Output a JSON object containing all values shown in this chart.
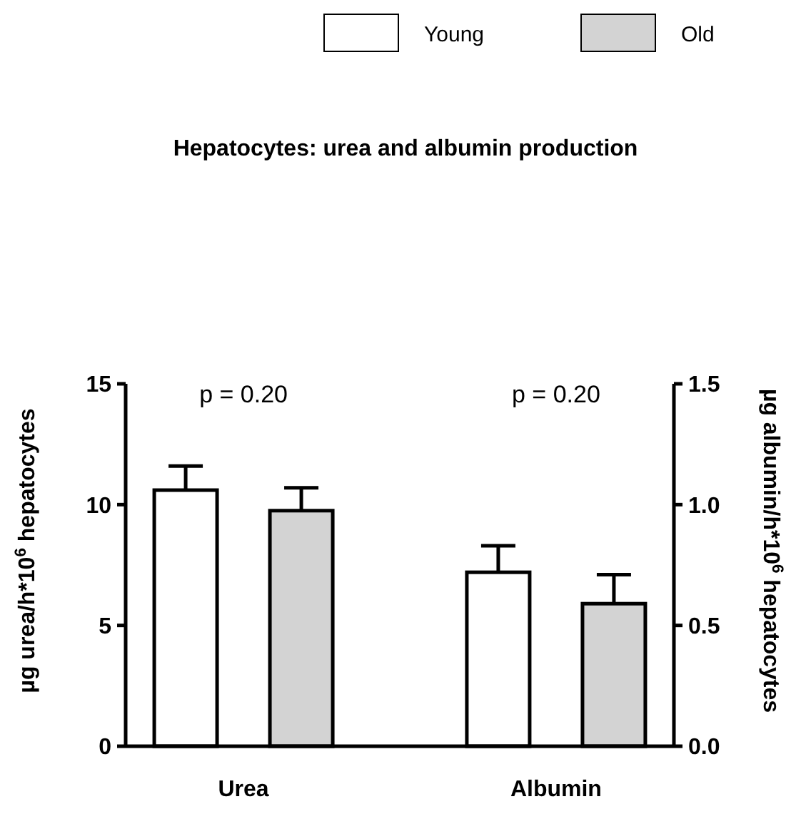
{
  "chart_data": {
    "type": "bar",
    "title": "Hepatocytes: urea and albumin production",
    "categories": [
      "Urea",
      "Albumin"
    ],
    "ylabel": "µg urea/h*10$^{6}$ hepatocytes",
    "y2label": "µg albumin/h*10$^{6}$ hepatocytes",
    "ylim": [
      0,
      15
    ],
    "yticks": [
      0,
      5,
      10,
      15
    ],
    "y2lim": [
      0,
      1.5
    ],
    "y2ticks": [
      {
        "value": 0,
        "label": "0.0"
      },
      {
        "value": 0.5,
        "label": "0.5"
      },
      {
        "value": 1,
        "label": "1.0"
      },
      {
        "value": 1.5,
        "label": "1.5"
      }
    ],
    "series": [
      {
        "name": "Young",
        "color": "#ffffff",
        "values": [
          10.6,
          null
        ],
        "errors": [
          1.0,
          null
        ]
      },
      {
        "name": "Old",
        "color": "#d3d3d3",
        "values": [
          9.75,
          null
        ],
        "errors": [
          0.95,
          null
        ]
      },
      {
        "color": "#ffffff",
        "values": [
          null,
          0.72
        ],
        "errors": [
          null,
          0.11
        ],
        "axis": "y2"
      },
      {
        "color": "#d3d3d3",
        "values": [
          null,
          0.59
        ],
        "errors": [
          null,
          0.12
        ],
        "axis": "y2"
      }
    ],
    "annotations": [
      "p = 0.20",
      "p = 0.20"
    ],
    "legend": "top",
    "grid": false
  }
}
